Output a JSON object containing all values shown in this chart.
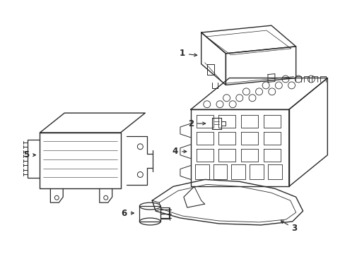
{
  "background_color": "#ffffff",
  "line_color": "#2a2a2a",
  "line_width": 1.0,
  "label_fontsize": 8.5,
  "fig_w": 4.89,
  "fig_h": 3.6,
  "dpi": 100
}
